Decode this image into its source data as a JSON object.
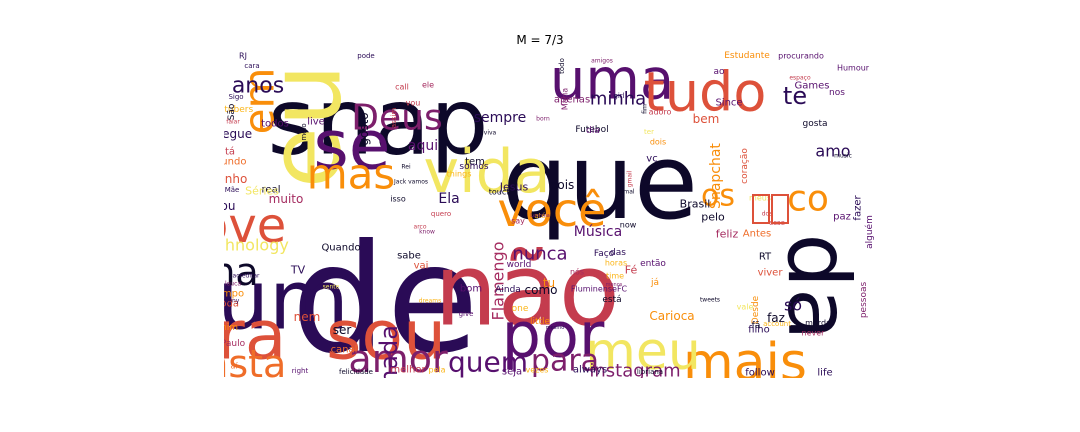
{
  "title": "M = 7/3",
  "palette": {
    "black": "#0d0829",
    "indigo": "#2a0b56",
    "purple": "#57106e",
    "violet": "#7d1f6b",
    "magenta": "#a52c60",
    "rose": "#c43c4e",
    "red": "#dd513a",
    "orange": "#ef6d29",
    "amber": "#f98e0a",
    "gold": "#fbb61a",
    "yellow": "#f2e661"
  },
  "words": [
    {
      "text": "que",
      "size": 104,
      "color": "black",
      "rot": 0
    },
    {
      "text": "de",
      "size": 150,
      "color": "indigo",
      "rot": 0
    },
    {
      "text": "snap",
      "size": 92,
      "color": "black",
      "rot": 0
    },
    {
      "text": "eu",
      "size": 100,
      "color": "yellow",
      "rot": 90
    },
    {
      "text": "não",
      "size": 100,
      "color": "rose",
      "rot": 0
    },
    {
      "text": "da",
      "size": 86,
      "color": "black",
      "rot": 270
    },
    {
      "text": "um",
      "size": 82,
      "color": "indigo",
      "rot": 0
    },
    {
      "text": "sou",
      "size": 68,
      "color": "red",
      "rot": 0
    },
    {
      "text": "pra",
      "size": 68,
      "color": "red",
      "rot": 0
    },
    {
      "text": "se",
      "size": 68,
      "color": "purple",
      "rot": 0
    },
    {
      "text": "vida",
      "size": 60,
      "color": "yellow",
      "rot": 0
    },
    {
      "text": "por",
      "size": 62,
      "color": "purple",
      "rot": 0
    },
    {
      "text": "uma",
      "size": 56,
      "color": "purple",
      "rot": 0
    },
    {
      "text": "tudo",
      "size": 54,
      "color": "red",
      "rot": 0
    },
    {
      "text": "love",
      "size": 48,
      "color": "red",
      "rot": 0
    },
    {
      "text": "mais",
      "size": 52,
      "color": "amber",
      "rot": 0
    },
    {
      "text": "meu",
      "size": 52,
      "color": "yellow",
      "rot": 0
    },
    {
      "text": "você",
      "size": 46,
      "color": "amber",
      "rot": 0
    },
    {
      "text": "mas",
      "size": 42,
      "color": "amber",
      "rot": 0
    },
    {
      "text": "em",
      "size": 42,
      "color": "amber",
      "rot": 90
    },
    {
      "text": "na",
      "size": 38,
      "color": "black",
      "rot": 0
    },
    {
      "text": "insta",
      "size": 38,
      "color": "orange",
      "rot": 0
    },
    {
      "text": "amor",
      "size": 38,
      "color": "violet",
      "rot": 0
    },
    {
      "text": "Deus",
      "size": 36,
      "color": "violet",
      "rot": 0
    },
    {
      "text": "co",
      "size": 36,
      "color": "amber",
      "rot": 0
    },
    {
      "text": "para",
      "size": 30,
      "color": "violet",
      "rot": 0
    },
    {
      "text": "quem",
      "size": 28,
      "color": "purple",
      "rot": 0
    },
    {
      "text": "os",
      "size": 30,
      "color": "amber",
      "rot": 0
    },
    {
      "text": "nada",
      "size": 24,
      "color": "purple",
      "rot": 90
    },
    {
      "text": "anos",
      "size": 22,
      "color": "indigo",
      "rot": 0
    },
    {
      "text": "te",
      "size": 24,
      "color": "indigo",
      "rot": 0
    },
    {
      "text": "minha",
      "size": 18,
      "color": "indigo",
      "rot": 0
    },
    {
      "text": "instagram",
      "size": 18,
      "color": "violet",
      "rot": 0
    },
    {
      "text": "nunca",
      "size": 18,
      "color": "purple",
      "rot": 0
    },
    {
      "text": "Technology",
      "size": 16,
      "color": "yellow",
      "rot": 0
    },
    {
      "text": "Snapchat",
      "size": 14,
      "color": "amber",
      "rot": 90
    },
    {
      "text": "Flamengo",
      "size": 16,
      "color": "magenta",
      "rot": 90
    },
    {
      "text": "amo",
      "size": 16,
      "color": "indigo",
      "rot": 0
    },
    {
      "text": "só",
      "size": 16,
      "color": "indigo",
      "rot": 0
    },
    {
      "text": "sempre",
      "size": 14,
      "color": "indigo",
      "rot": 0
    },
    {
      "text": "aqui",
      "size": 14,
      "color": "purple",
      "rot": 0
    },
    {
      "text": "muito",
      "size": 12,
      "color": "magenta",
      "rot": 0
    },
    {
      "text": "Música",
      "size": 14,
      "color": "purple",
      "rot": 0
    },
    {
      "text": "Ela",
      "size": 14,
      "color": "indigo",
      "rot": 0
    },
    {
      "text": "gosto",
      "size": 12,
      "color": "black",
      "rot": 90
    },
    {
      "text": "segue",
      "size": 12,
      "color": "indigo",
      "rot": 0
    },
    {
      "text": "tenho",
      "size": 12,
      "color": "red",
      "rot": 0
    },
    {
      "text": "mundo",
      "size": 10,
      "color": "orange",
      "rot": 0
    },
    {
      "text": "Jesus",
      "size": 11,
      "color": "indigo",
      "rot": 0
    },
    {
      "text": "pois",
      "size": 12,
      "color": "black",
      "rot": 0
    },
    {
      "text": "Brasil",
      "size": 11,
      "color": "black",
      "rot": 0
    },
    {
      "text": "Carioca",
      "size": 12,
      "color": "amber",
      "rot": 0
    },
    {
      "text": "como",
      "size": 12,
      "color": "black",
      "rot": 0
    },
    {
      "text": "faz",
      "size": 12,
      "color": "black",
      "rot": 0
    },
    {
      "text": "nem",
      "size": 12,
      "color": "red",
      "rot": 0
    },
    {
      "text": "ser",
      "size": 12,
      "color": "black",
      "rot": 0
    },
    {
      "text": "Fé",
      "size": 11,
      "color": "rose",
      "rot": 0
    },
    {
      "text": "tu",
      "size": 12,
      "color": "amber",
      "rot": 0
    },
    {
      "text": "bem",
      "size": 12,
      "color": "red",
      "rot": 0
    },
    {
      "text": "vc",
      "size": 10,
      "color": "indigo",
      "rot": 0
    },
    {
      "text": "follow",
      "size": 10,
      "color": "indigo",
      "rot": 0
    },
    {
      "text": "life",
      "size": 10,
      "color": "indigo",
      "rot": 0
    },
    {
      "text": "always",
      "size": 10,
      "color": "indigo",
      "rot": 0
    },
    {
      "text": "seja",
      "size": 10,
      "color": "purple",
      "rot": 0
    },
    {
      "text": "canal",
      "size": 10,
      "color": "orange",
      "rot": 0
    },
    {
      "text": "tempo",
      "size": 10,
      "color": "amber",
      "rot": 0
    },
    {
      "text": "real",
      "size": 10,
      "color": "black",
      "rot": 0
    },
    {
      "text": "ou",
      "size": 12,
      "color": "indigo",
      "rot": 0
    },
    {
      "text": "foda",
      "size": 10,
      "color": "red",
      "rot": 0
    },
    {
      "text": "todos",
      "size": 10,
      "color": "purple",
      "rot": 0
    },
    {
      "text": "live",
      "size": 10,
      "color": "purple",
      "rot": 0
    },
    {
      "text": "tá",
      "size": 10,
      "color": "rose",
      "rot": 0
    },
    {
      "text": "Séries",
      "size": 11,
      "color": "yellow",
      "rot": 0
    },
    {
      "text": "Quando",
      "size": 10,
      "color": "black",
      "rot": 0
    },
    {
      "text": "TV",
      "size": 11,
      "color": "indigo",
      "rot": 0
    },
    {
      "text": "tem",
      "size": 10,
      "color": "black",
      "rot": 0
    },
    {
      "text": "somos",
      "size": 9,
      "color": "indigo",
      "rot": 0
    },
    {
      "text": "apenas",
      "size": 10,
      "color": "violet",
      "rot": 0
    },
    {
      "text": "Futebol",
      "size": 9,
      "color": "black",
      "rot": 0
    },
    {
      "text": "Since",
      "size": 10,
      "color": "purple",
      "rot": 0
    },
    {
      "text": "Games",
      "size": 10,
      "color": "purple",
      "rot": 0
    },
    {
      "text": "nos",
      "size": 9,
      "color": "purple",
      "rot": 0
    },
    {
      "text": "feliz",
      "size": 11,
      "color": "magenta",
      "rot": 0
    },
    {
      "text": "Antes",
      "size": 10,
      "color": "orange",
      "rot": 0
    },
    {
      "text": "pelo",
      "size": 11,
      "color": "black",
      "rot": 0
    },
    {
      "text": "paz",
      "size": 10,
      "color": "purple",
      "rot": 0
    },
    {
      "text": "fazer",
      "size": 10,
      "color": "indigo",
      "rot": 90
    },
    {
      "text": "alguém",
      "size": 9,
      "color": "purple",
      "rot": 90
    },
    {
      "text": "RT",
      "size": 10,
      "color": "black",
      "rot": 0
    },
    {
      "text": "viver",
      "size": 10,
      "color": "red",
      "rot": 0
    },
    {
      "text": "filho",
      "size": 10,
      "color": "indigo",
      "rot": 0
    },
    {
      "text": "pessoas",
      "size": 9,
      "color": "violet",
      "rot": 90
    },
    {
      "text": "Ainda",
      "size": 9,
      "color": "indigo",
      "rot": 0
    },
    {
      "text": "bom",
      "size": 10,
      "color": "purple",
      "rot": 0
    },
    {
      "text": "sabe",
      "size": 10,
      "color": "black",
      "rot": 0
    },
    {
      "text": "vai",
      "size": 10,
      "color": "red",
      "rot": 0
    },
    {
      "text": "das",
      "size": 9,
      "color": "indigo",
      "rot": 0
    },
    {
      "text": "então",
      "size": 9,
      "color": "purple",
      "rot": 0
    },
    {
      "text": "Faço",
      "size": 9,
      "color": "indigo",
      "rot": 0
    },
    {
      "text": "world",
      "size": 9,
      "color": "purple",
      "rot": 0
    },
    {
      "text": "mim",
      "size": 9,
      "color": "amber",
      "rot": 0
    },
    {
      "text": "Paulo",
      "size": 9,
      "color": "magenta",
      "rot": 0
    },
    {
      "text": "melhor",
      "size": 10,
      "color": "rose",
      "rot": 0
    },
    {
      "text": "FluminenseFC",
      "size": 8,
      "color": "purple",
      "rot": 0
    },
    {
      "text": "está",
      "size": 9,
      "color": "black",
      "rot": 0
    },
    {
      "text": "Desde",
      "size": 9,
      "color": "amber",
      "rot": 90
    },
    {
      "text": "gosta",
      "size": 9,
      "color": "black",
      "rot": 0
    },
    {
      "text": "everyone",
      "size": 8,
      "color": "amber",
      "rot": 90
    },
    {
      "text": "coração",
      "size": 9,
      "color": "red",
      "rot": 90
    },
    {
      "text": "merda",
      "size": 8,
      "color": "black",
      "rot": 0
    },
    {
      "text": "never",
      "size": 8,
      "color": "magenta",
      "rot": 0
    },
    {
      "text": "Youtubers",
      "size": 9,
      "color": "gold",
      "rot": 0
    },
    {
      "text": "Humour",
      "size": 8,
      "color": "purple",
      "rot": 0
    },
    {
      "text": "Estudante",
      "size": 9,
      "color": "amber",
      "rot": 0
    },
    {
      "text": "procurando",
      "size": 8,
      "color": "purple",
      "rot": 0
    },
    {
      "text": "Maria",
      "size": 8,
      "color": "violet",
      "rot": 90
    },
    {
      "text": "dia",
      "size": 9,
      "color": "purple",
      "rot": 0
    },
    {
      "text": "dois",
      "size": 8,
      "color": "amber",
      "rot": 0
    },
    {
      "text": "adoro",
      "size": 8,
      "color": "rose",
      "rot": 0
    },
    {
      "text": "call",
      "size": 8,
      "color": "rose",
      "rot": 0
    },
    {
      "text": "vou",
      "size": 8,
      "color": "rose",
      "rot": 0
    },
    {
      "text": "ele",
      "size": 8,
      "color": "magenta",
      "rot": 0
    },
    {
      "text": "things",
      "size": 8,
      "color": "gold",
      "rot": 0
    },
    {
      "text": "touch",
      "size": 8,
      "color": "black",
      "rot": 0
    },
    {
      "text": "say",
      "size": 8,
      "color": "magenta",
      "rot": 0
    },
    {
      "text": "now",
      "size": 8,
      "color": "black",
      "rot": 0
    },
    {
      "text": "isso",
      "size": 8,
      "color": "black",
      "rot": 0
    },
    {
      "text": "quero",
      "size": 7,
      "color": "rose",
      "rot": 0
    },
    {
      "text": "horas",
      "size": 8,
      "color": "gold",
      "rot": 0
    },
    {
      "text": "nós",
      "size": 8,
      "color": "magenta",
      "rot": 0
    },
    {
      "text": "time",
      "size": 8,
      "color": "gold",
      "rot": 0
    },
    {
      "text": "já",
      "size": 9,
      "color": "amber",
      "rot": 0
    },
    {
      "text": "little",
      "size": 9,
      "color": "amber",
      "rot": 0
    },
    {
      "text": "one",
      "size": 9,
      "color": "gold",
      "rot": 0
    },
    {
      "text": "give",
      "size": 7,
      "color": "purple",
      "rot": 0
    },
    {
      "text": "pela",
      "size": 8,
      "color": "gold",
      "rot": 0
    },
    {
      "text": "vezes",
      "size": 8,
      "color": "gold",
      "rot": 0
    },
    {
      "text": "libriana",
      "size": 7,
      "color": "black",
      "rot": 0
    },
    {
      "text": "felicidade",
      "size": 7,
      "color": "black",
      "rot": 0
    },
    {
      "text": "right",
      "size": 7,
      "color": "purple",
      "rot": 0
    },
    {
      "text": "aí",
      "size": 8,
      "color": "orange",
      "rot": 0
    },
    {
      "text": "account",
      "size": 7,
      "color": "gold",
      "rot": 0
    },
    {
      "text": "meio",
      "size": 7,
      "color": "black",
      "rot": 90
    },
    {
      "text": "assim",
      "size": 7,
      "color": "rose",
      "rot": 90
    },
    {
      "text": "todo",
      "size": 7,
      "color": "black",
      "rot": 90
    },
    {
      "text": "São",
      "size": 9,
      "color": "black",
      "rot": 90
    },
    {
      "text": "Mãe",
      "size": 7,
      "color": "indigo",
      "rot": 0
    },
    {
      "text": "Sigo",
      "size": 7,
      "color": "indigo",
      "rot": 0
    },
    {
      "text": "RJ",
      "size": 8,
      "color": "indigo",
      "rot": 0
    },
    {
      "text": "cara",
      "size": 7,
      "color": "indigo",
      "rot": 0
    },
    {
      "text": "pode",
      "size": 7,
      "color": "indigo",
      "rot": 0
    },
    {
      "text": "amigos",
      "size": 6,
      "color": "violet",
      "rot": 0
    },
    {
      "text": "girl",
      "size": 7,
      "color": "indigo",
      "rot": 0
    },
    {
      "text": "born",
      "size": 6,
      "color": "violet",
      "rot": 0
    },
    {
      "text": "viva",
      "size": 6,
      "color": "black",
      "rot": 0
    },
    {
      "text": "Jack vamos",
      "size": 6,
      "color": "black",
      "rot": 0
    },
    {
      "text": "arco",
      "size": 6,
      "color": "rose",
      "rot": 0
    },
    {
      "text": "know",
      "size": 6,
      "color": "violet",
      "rot": 0
    },
    {
      "text": "louca",
      "size": 6,
      "color": "violet",
      "rot": 0
    },
    {
      "text": "acreditar",
      "size": 6,
      "color": "indigo",
      "rot": 0
    },
    {
      "text": "harmony",
      "size": 6,
      "color": "indigo",
      "rot": 0
    },
    {
      "text": "dreams",
      "size": 6,
      "color": "gold",
      "rot": 0
    },
    {
      "text": "menos",
      "size": 5,
      "color": "violet",
      "rot": 0
    },
    {
      "text": "tweets",
      "size": 6,
      "color": "black",
      "rot": 0
    },
    {
      "text": "music",
      "size": 6,
      "color": "black",
      "rot": 0
    },
    {
      "text": "espaço",
      "size": 6,
      "color": "rose",
      "rot": 0
    },
    {
      "text": "falar",
      "size": 6,
      "color": "rose",
      "rot": 0
    },
    {
      "text": "dos",
      "size": 6,
      "color": "rose",
      "rot": 0
    },
    {
      "text": "mal",
      "size": 6,
      "color": "black",
      "rot": 0
    },
    {
      "text": "Rei",
      "size": 6,
      "color": "black",
      "rot": 0
    },
    {
      "text": "gmail",
      "size": 6,
      "color": "rose",
      "rot": 90
    },
    {
      "text": "esse",
      "size": 7,
      "color": "rose",
      "rot": 0
    },
    {
      "text": "meus",
      "size": 8,
      "color": "yellow",
      "rot": 0
    },
    {
      "text": "vale",
      "size": 8,
      "color": "yellow",
      "rot": 0
    },
    {
      "text": "fã",
      "size": 9,
      "color": "black",
      "rot": 0
    },
    {
      "text": "ao",
      "size": 9,
      "color": "purple",
      "rot": 0
    },
    {
      "text": "fim",
      "size": 6,
      "color": "black",
      "rot": 90
    },
    {
      "text": "sente",
      "size": 6,
      "color": "yellow",
      "rot": 0
    },
    {
      "text": "ter",
      "size": 7,
      "color": "yellow",
      "rot": 0
    },
    {
      "text": "mesmo",
      "size": 5,
      "color": "indigo",
      "rot": 0
    },
    {
      "text": "até",
      "size": 7,
      "color": "gold",
      "rot": 0
    },
    {
      "text": "Leonina",
      "size": 5,
      "color": "violet",
      "rot": 0
    }
  ]
}
